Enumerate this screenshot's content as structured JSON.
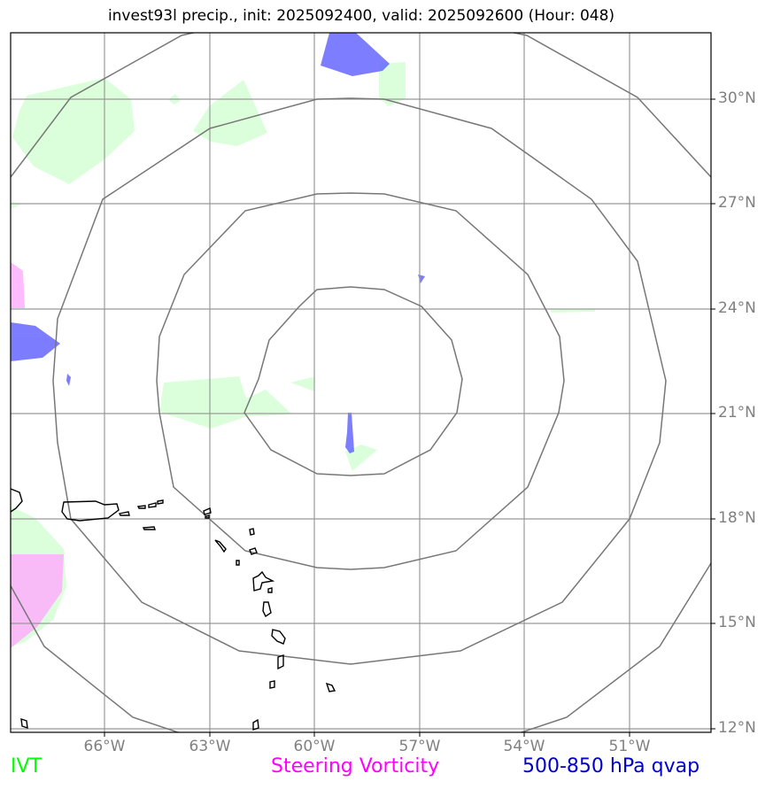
{
  "title": "invest93l precip., init: 2025092400, valid: 2025092600 (Hour: 048)",
  "lat_labels": [
    "30°N",
    "27°N",
    "24°N",
    "21°N",
    "18°N",
    "15°N",
    "12°N"
  ],
  "lon_labels": [
    "66°W",
    "63°W",
    "60°W",
    "57°W",
    "54°W",
    "51°W"
  ],
  "legend": {
    "ivt": {
      "label": "IVT",
      "color": "#00ff00"
    },
    "vorticity": {
      "label": "Steering Vorticity",
      "color": "#ff00ff"
    },
    "qvap": {
      "label": "500-850 hPa qvap",
      "color": "#0000cc"
    }
  },
  "colors": {
    "ivt_fill": "#ccffcc",
    "vorticity_fill": "#ffaaff",
    "qvap_fill": "#6666ff",
    "grid": "#808080",
    "range_rings": "#777777",
    "coastline": "#000000"
  }
}
